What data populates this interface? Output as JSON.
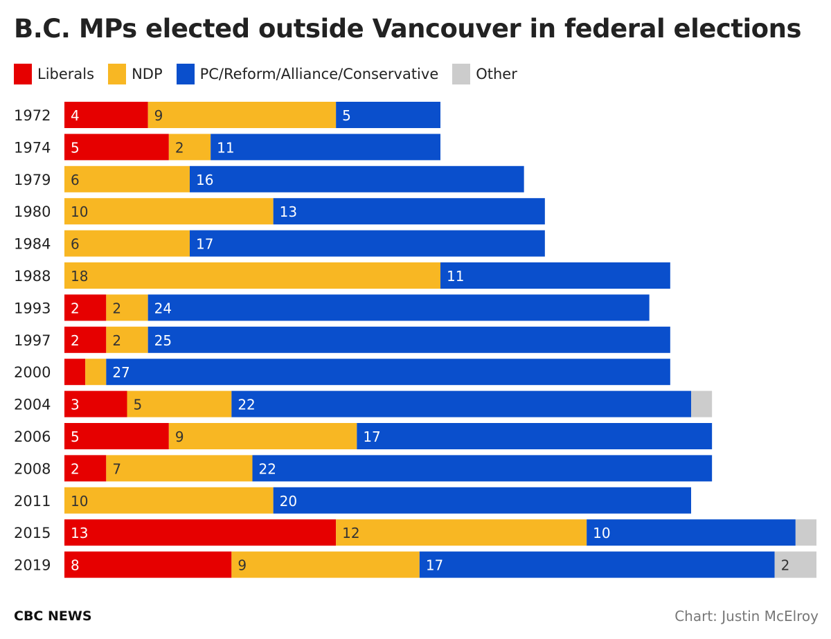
{
  "chart_data": {
    "type": "bar",
    "orientation": "horizontal",
    "stacked": true,
    "title": "B.C. MPs elected outside Vancouver in federal elections",
    "legend_position": "top-left",
    "grid": false,
    "categories": [
      "1972",
      "1974",
      "1979",
      "1980",
      "1984",
      "1988",
      "1993",
      "1997",
      "2000",
      "2004",
      "2006",
      "2008",
      "2011",
      "2015",
      "2019"
    ],
    "series": [
      {
        "name": "Liberals",
        "color": "#e60000",
        "values": [
          4,
          5,
          0,
          0,
          0,
          0,
          2,
          2,
          1,
          3,
          5,
          2,
          0,
          13,
          8
        ],
        "labels": [
          "4",
          "5",
          "",
          "",
          "",
          "",
          "2",
          "2",
          "",
          "3",
          "5",
          "2",
          "",
          "13",
          "8"
        ]
      },
      {
        "name": "NDP",
        "color": "#f8b723",
        "values": [
          9,
          2,
          6,
          10,
          6,
          18,
          2,
          2,
          1,
          5,
          9,
          7,
          10,
          12,
          9
        ],
        "labels": [
          "9",
          "2",
          "6",
          "10",
          "6",
          "18",
          "2",
          "2",
          "",
          "5",
          "9",
          "7",
          "10",
          "12",
          "9"
        ]
      },
      {
        "name": "PC/Reform/Alliance/Conservative",
        "color": "#0a4fcc",
        "values": [
          5,
          11,
          16,
          13,
          17,
          11,
          24,
          25,
          27,
          22,
          17,
          22,
          20,
          10,
          17
        ],
        "labels": [
          "5",
          "11",
          "16",
          "13",
          "17",
          "11",
          "24",
          "25",
          "27",
          "22",
          "17",
          "22",
          "20",
          "10",
          "17"
        ]
      },
      {
        "name": "Other",
        "color": "#cccccc",
        "values": [
          0,
          0,
          0,
          0,
          0,
          0,
          0,
          0,
          0,
          1,
          0,
          0,
          0,
          1,
          2
        ],
        "labels": [
          "",
          "",
          "",
          "",
          "",
          "",
          "",
          "",
          "",
          "",
          "",
          "",
          "",
          "",
          "2"
        ]
      }
    ],
    "xlim": [
      0,
      36
    ]
  },
  "footer": {
    "source": "CBC NEWS",
    "credit": "Chart: Justin McElroy"
  }
}
